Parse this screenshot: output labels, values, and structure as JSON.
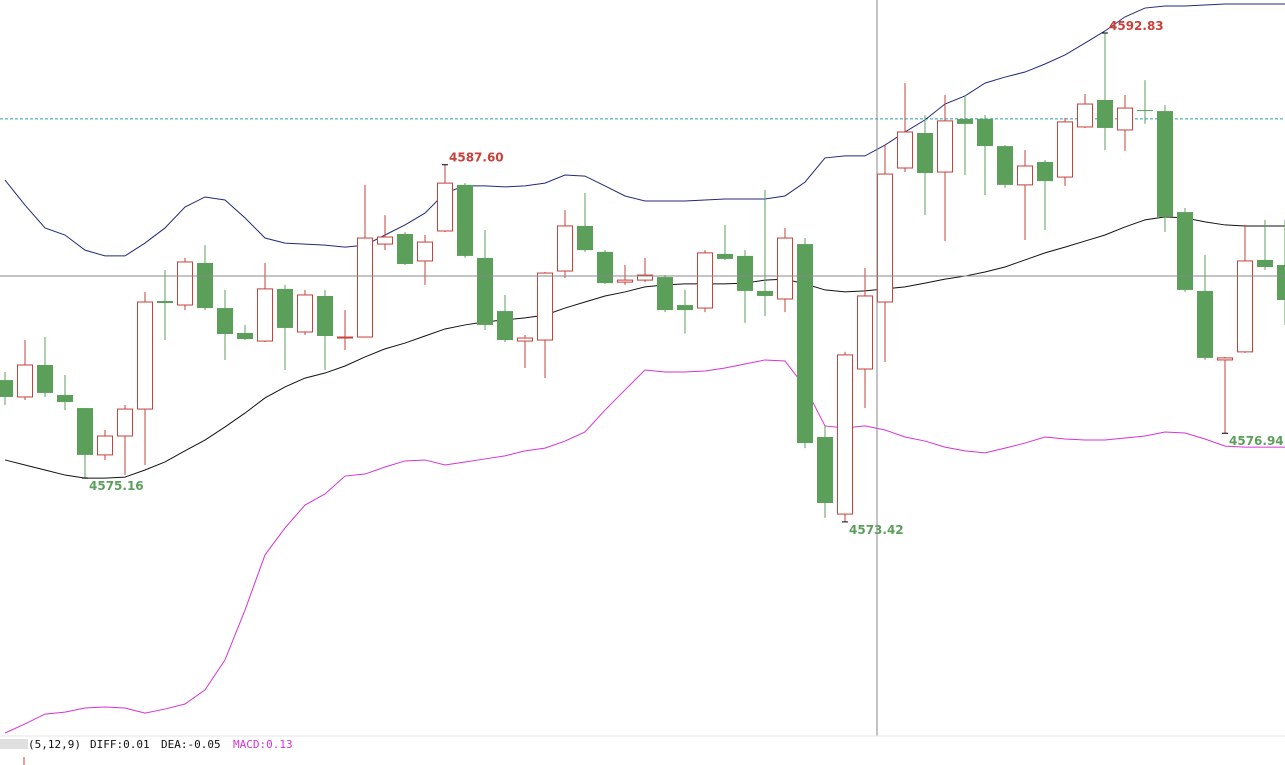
{
  "chart_data": {
    "type": "candlestick",
    "ylim": [
      4564.96,
      4594.14
    ],
    "up_color": "#c8413a",
    "down_color": "#5b9f5b",
    "candles": {
      "open": [
        4579.05,
        4578.38,
        4579.65,
        4578.46,
        4577.94,
        4576.08,
        4576.83,
        4577.9,
        4582.19,
        4582.03,
        4583.7,
        4581.91,
        4580.92,
        4580.6,
        4582.67,
        4580.96,
        4582.39,
        4580.72,
        4580.76,
        4584.45,
        4584.85,
        4583.78,
        4584.97,
        4586.8,
        4583.9,
        4581.79,
        4580.6,
        4580.64,
        4583.38,
        4585.17,
        4584.14,
        4582.94,
        4583.02,
        4583.14,
        4582.03,
        4581.91,
        4584.06,
        4583.98,
        4582.59,
        4582.27,
        4584.45,
        4576.79,
        4573.73,
        4579.49,
        4582.15,
        4587.47,
        4588.86,
        4587.31,
        4589.42,
        4589.42,
        4588.34,
        4586.8,
        4587.71,
        4587.11,
        4589.1,
        4590.17,
        4588.98,
        4589.77,
        4589.73,
        4585.72,
        4582.59,
        4579.85,
        4580.17,
        4583.82,
        4583.62
      ],
      "high": [
        4579.37,
        4580.64,
        4580.76,
        4579.25,
        4577.94,
        4577.07,
        4578.06,
        4582.55,
        4583.42,
        4583.9,
        4584.41,
        4582.63,
        4581.24,
        4583.7,
        4582.83,
        4582.63,
        4582.63,
        4581.83,
        4586.8,
        4585.6,
        4584.93,
        4584.81,
        4587.6,
        4586.87,
        4585.01,
        4582.43,
        4580.84,
        4583.34,
        4585.8,
        4586.48,
        4584.21,
        4583.62,
        4583.9,
        4583.22,
        4582.63,
        4584.21,
        4585.21,
        4584.21,
        4586.6,
        4585.09,
        4584.69,
        4577.27,
        4580.17,
        4583.5,
        4588.38,
        4590.84,
        4589.57,
        4590.37,
        4590.37,
        4589.57,
        4588.38,
        4588.18,
        4587.79,
        4589.46,
        4590.41,
        4592.83,
        4590.37,
        4590.96,
        4589.97,
        4585.88,
        4584.02,
        4579.97,
        4585.21,
        4585.41,
        4585.41
      ],
      "low": [
        4578.06,
        4578.26,
        4578.38,
        4577.86,
        4575.16,
        4575.88,
        4575.28,
        4575.68,
        4580.64,
        4581.83,
        4581.83,
        4579.85,
        4580.64,
        4580.56,
        4579.45,
        4580.84,
        4579.45,
        4580.24,
        4580.76,
        4584.21,
        4583.62,
        4582.83,
        4584.93,
        4583.9,
        4581.04,
        4580.56,
        4579.53,
        4579.13,
        4583.1,
        4584.14,
        4582.87,
        4582.83,
        4582.94,
        4581.75,
        4580.9,
        4581.75,
        4583.82,
        4581.32,
        4581.59,
        4581.75,
        4576.35,
        4573.58,
        4573.42,
        4577.94,
        4579.77,
        4587.31,
        4585.6,
        4584.57,
        4587.19,
        4586.4,
        4586.68,
        4584.61,
        4585.01,
        4586.76,
        4589.06,
        4588.18,
        4588.15,
        4589.22,
        4584.93,
        4582.55,
        4579.85,
        4576.94,
        4580.13,
        4583.42,
        4581.24
      ],
      "close": [
        4578.38,
        4579.65,
        4578.54,
        4578.18,
        4576.08,
        4576.83,
        4577.9,
        4582.15,
        4582.11,
        4583.74,
        4581.91,
        4580.88,
        4580.68,
        4582.67,
        4581.12,
        4582.43,
        4580.8,
        4580.76,
        4584.69,
        4584.73,
        4583.66,
        4584.53,
        4586.87,
        4583.98,
        4581.24,
        4580.64,
        4580.72,
        4583.3,
        4585.17,
        4584.21,
        4582.9,
        4583.02,
        4583.22,
        4581.83,
        4581.83,
        4584.1,
        4583.86,
        4582.59,
        4582.39,
        4584.69,
        4576.55,
        4574.17,
        4580.05,
        4582.39,
        4587.23,
        4588.9,
        4587.27,
        4589.34,
        4589.22,
        4588.34,
        4586.8,
        4587.55,
        4586.95,
        4589.3,
        4590.01,
        4589.06,
        4589.85,
        4589.73,
        4585.53,
        4582.63,
        4579.93,
        4579.93,
        4583.78,
        4583.54,
        4582.23
      ]
    },
    "lines": [
      {
        "color": "#1f2a7a",
        "values": [
          4586.99,
          4586.0,
          4585.09,
          4584.81,
          4584.21,
          4583.98,
          4583.98,
          4584.49,
          4585.09,
          4585.92,
          4586.32,
          4586.2,
          4585.49,
          4584.69,
          4584.49,
          4584.45,
          4584.41,
          4584.33,
          4584.41,
          4584.81,
          4585.21,
          4585.68,
          4586.48,
          4586.76,
          4586.76,
          4586.72,
          4586.76,
          4586.87,
          4587.19,
          4587.15,
          4586.76,
          4586.36,
          4586.16,
          4586.16,
          4586.16,
          4586.2,
          4586.24,
          4586.24,
          4586.24,
          4586.36,
          4586.91,
          4587.87,
          4587.95,
          4587.95,
          4588.38,
          4588.9,
          4589.38,
          4590.01,
          4590.33,
          4590.84,
          4591.08,
          4591.28,
          4591.6,
          4591.96,
          4592.43,
          4592.91,
          4593.47,
          4593.82,
          4593.9,
          4593.9,
          4593.94,
          4593.98,
          4593.98,
          4593.98,
          4593.98
        ]
      },
      {
        "color": "#111111",
        "values": [
          4575.88,
          4575.68,
          4575.48,
          4575.28,
          4575.16,
          4575.16,
          4575.2,
          4575.48,
          4575.8,
          4576.24,
          4576.67,
          4577.19,
          4577.74,
          4578.34,
          4578.78,
          4579.13,
          4579.33,
          4579.61,
          4579.97,
          4580.29,
          4580.52,
          4580.8,
          4581.08,
          4581.24,
          4581.36,
          4581.44,
          4581.52,
          4581.63,
          4581.91,
          4582.15,
          4582.39,
          4582.55,
          4582.75,
          4582.83,
          4582.87,
          4582.87,
          4582.87,
          4582.9,
          4583.02,
          4583.06,
          4582.87,
          4582.63,
          4582.55,
          4582.59,
          4582.67,
          4582.75,
          4582.9,
          4583.06,
          4583.18,
          4583.34,
          4583.54,
          4583.82,
          4584.1,
          4584.33,
          4584.57,
          4584.81,
          4585.13,
          4585.41,
          4585.53,
          4585.49,
          4585.33,
          4585.21,
          4585.17,
          4585.17,
          4585.17
        ]
      },
      {
        "color": "#d633d6",
        "values": [
          4565.04,
          4565.4,
          4565.79,
          4565.87,
          4566.03,
          4566.07,
          4566.03,
          4565.83,
          4565.99,
          4566.19,
          4566.75,
          4567.94,
          4569.92,
          4572.11,
          4573.18,
          4574.09,
          4574.53,
          4575.24,
          4575.32,
          4575.6,
          4575.84,
          4575.88,
          4575.68,
          4575.8,
          4575.92,
          4576.04,
          4576.24,
          4576.35,
          4576.63,
          4576.99,
          4577.86,
          4578.66,
          4579.45,
          4579.37,
          4579.37,
          4579.41,
          4579.53,
          4579.69,
          4579.85,
          4579.81,
          4578.78,
          4577.23,
          4577.15,
          4577.23,
          4577.07,
          4576.79,
          4576.63,
          4576.39,
          4576.24,
          4576.16,
          4576.35,
          4576.55,
          4576.79,
          4576.71,
          4576.67,
          4576.67,
          4576.75,
          4576.83,
          4576.99,
          4576.95,
          4576.71,
          4576.43,
          4576.39,
          4576.39,
          4576.39
        ]
      }
    ],
    "reference_line": 4589.42,
    "reference_color": "#2a9db0",
    "annotations": [
      {
        "text": "4587.60",
        "value": 4587.6
      },
      {
        "text": "4592.83",
        "value": 4592.83
      },
      {
        "text": "4575.16",
        "value": 4575.16
      },
      {
        "text": "4573.42",
        "value": 4573.42
      },
      {
        "text": "4576.94",
        "value": 4576.94
      }
    ]
  },
  "indicator_bar": {
    "params": "(5,12,9)",
    "diff": "DIFF:0.01",
    "dea": "DEA:-0.05",
    "macd": "MACD:0.13"
  }
}
